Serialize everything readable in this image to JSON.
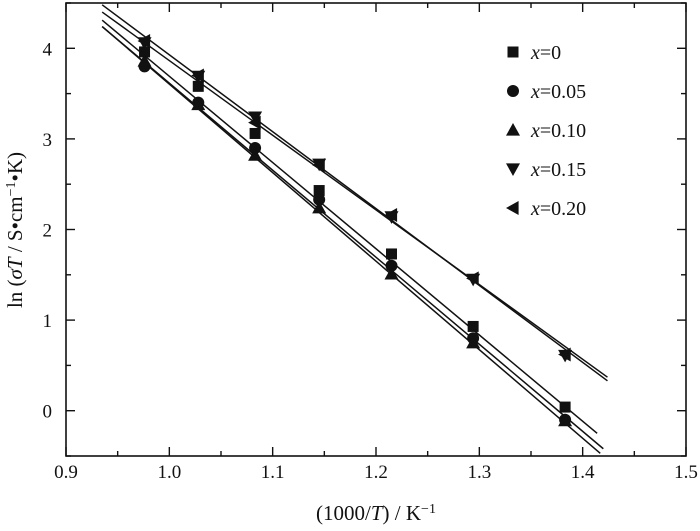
{
  "chart_data": {
    "type": "scatter",
    "title": "",
    "xlabel": {
      "prefix": "(1000/",
      "italic": "T",
      "suffix": ") / K",
      "sup": "−1"
    },
    "ylabel": {
      "prefix": "ln (",
      "sigma": "σ",
      "italic": "T",
      "suffix": " / S•cm",
      "sup": "−1",
      "tail": "•K)"
    },
    "xlim": [
      0.9,
      1.5
    ],
    "ylim": [
      -0.5,
      4.5
    ],
    "xticks": [
      "0.9",
      "1.0",
      "1.1",
      "1.2",
      "1.3",
      "1.4",
      "1.5"
    ],
    "yticks": [
      "0",
      "1",
      "2",
      "3",
      "4"
    ],
    "grid": false,
    "legend_position": "top-right",
    "series": [
      {
        "name": "x=0",
        "label_italic": "x",
        "label_rest": "=0",
        "marker": "square",
        "x": [
          0.976,
          1.028,
          1.083,
          1.145,
          1.215,
          1.294,
          1.383
        ],
        "y": [
          3.96,
          3.58,
          3.06,
          2.43,
          1.73,
          0.93,
          0.04
        ],
        "fit": {
          "x1": 0.935,
          "y1": 4.31,
          "x2": 1.414,
          "y2": -0.25
        }
      },
      {
        "name": "x=0.05",
        "label_italic": "x",
        "label_rest": "=0.05",
        "marker": "circle",
        "x": [
          0.976,
          1.028,
          1.083,
          1.145,
          1.215,
          1.294,
          1.383
        ],
        "y": [
          3.8,
          3.4,
          2.9,
          2.33,
          1.6,
          0.8,
          -0.1
        ],
        "fit": {
          "x1": 0.935,
          "y1": 4.24,
          "x2": 1.42,
          "y2": -0.42
        }
      },
      {
        "name": "x=0.10",
        "label_italic": "x",
        "label_rest": "=0.10",
        "marker": "triangle-up",
        "x": [
          0.976,
          1.028,
          1.083,
          1.145,
          1.215,
          1.294,
          1.383
        ],
        "y": [
          3.86,
          3.38,
          2.82,
          2.24,
          1.51,
          0.75,
          -0.11
        ],
        "fit": {
          "x1": 0.935,
          "y1": 4.24,
          "x2": 1.417,
          "y2": -0.47
        }
      },
      {
        "name": "x=0.15",
        "label_italic": "x",
        "label_rest": "=0.15",
        "marker": "triangle-down",
        "x": [
          0.976,
          1.028,
          1.083,
          1.145,
          1.215,
          1.294,
          1.383
        ],
        "y": [
          4.06,
          3.69,
          3.24,
          2.72,
          2.14,
          1.45,
          0.61
        ],
        "fit": {
          "x1": 0.935,
          "y1": 4.48,
          "x2": 1.424,
          "y2": 0.33
        }
      },
      {
        "name": "x=0.20",
        "label_italic": "x",
        "label_rest": "=0.20",
        "marker": "triangle-left",
        "x": [
          0.976,
          1.028,
          1.083,
          1.145,
          1.215,
          1.294,
          1.383
        ],
        "y": [
          4.08,
          3.7,
          3.18,
          2.71,
          2.16,
          1.46,
          0.62
        ],
        "fit": {
          "x1": 0.935,
          "y1": 4.4,
          "x2": 1.424,
          "y2": 0.37
        }
      }
    ]
  }
}
